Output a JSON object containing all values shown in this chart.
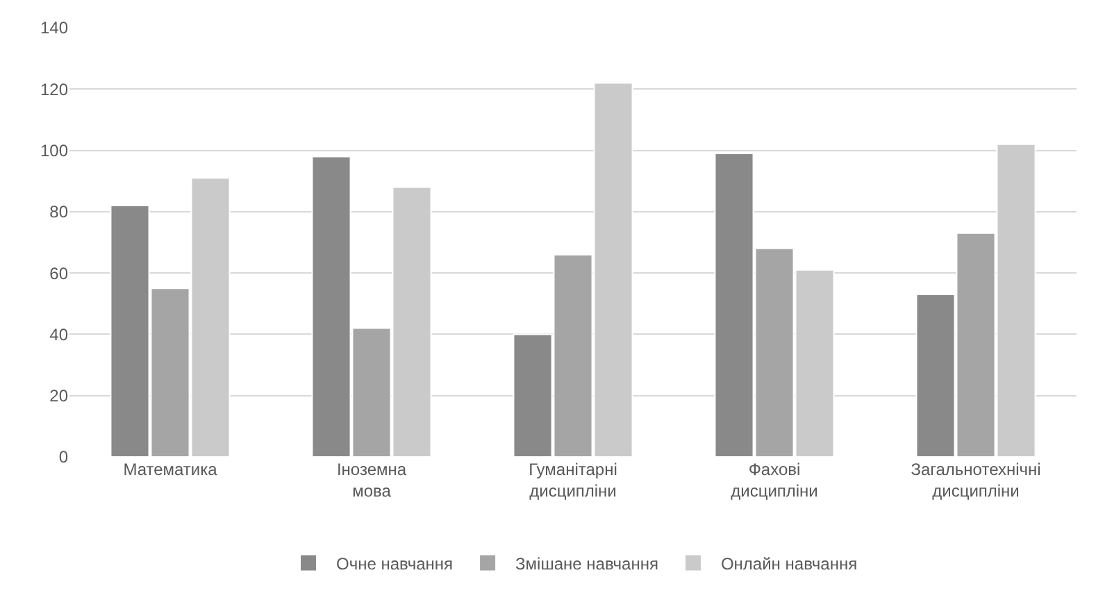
{
  "chart_data": {
    "type": "bar",
    "categories": [
      "Математика",
      "Іноземна\nмова",
      "Гуманітарні\nдисципліни",
      "Фахові\nдисципліни",
      "Загальнотехнічні\nдисципліни"
    ],
    "series": [
      {
        "name": "Очне навчання",
        "color": "#898989",
        "values": [
          82,
          98,
          40,
          99,
          53
        ]
      },
      {
        "name": "Змішане навчання",
        "color": "#a5a5a5",
        "values": [
          55,
          42,
          66,
          68,
          73
        ]
      },
      {
        "name": "Онлайн навчання",
        "color": "#cacaca",
        "values": [
          91,
          88,
          122,
          61,
          102
        ]
      }
    ],
    "ylim": [
      0,
      140
    ],
    "yticks": [
      0,
      20,
      40,
      60,
      80,
      100,
      120,
      140
    ],
    "grid": "y",
    "legend": "bottom"
  }
}
